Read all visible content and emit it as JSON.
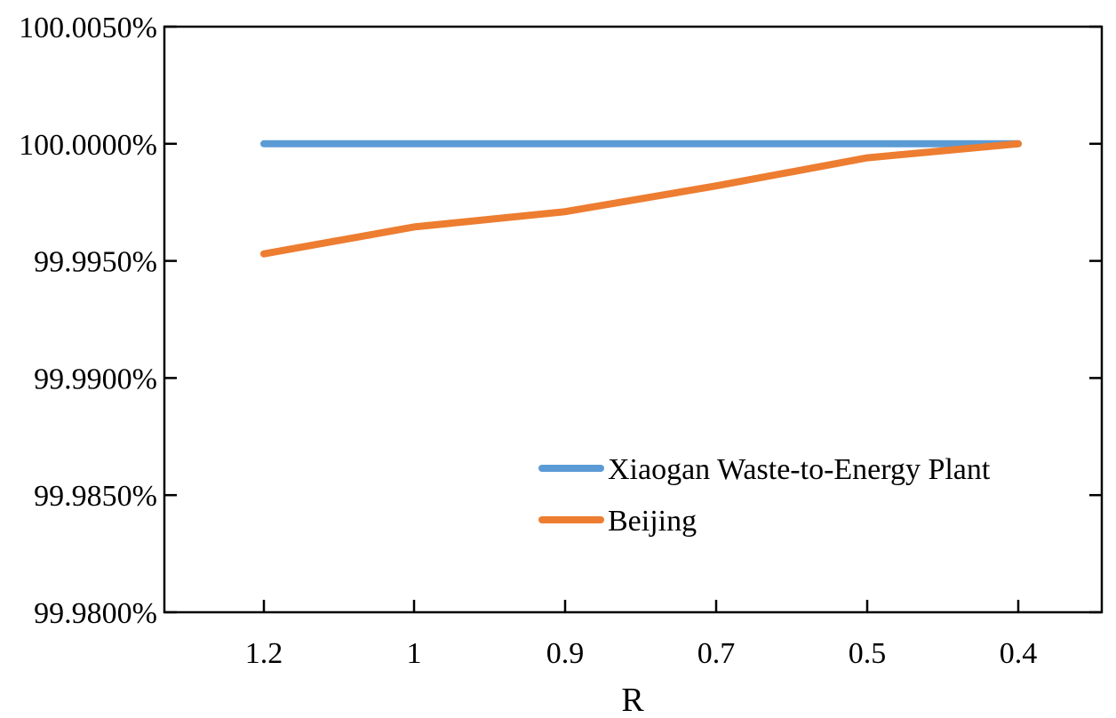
{
  "chart_data": {
    "type": "line",
    "title": "",
    "xlabel": "R",
    "ylabel": "",
    "categories": [
      "1.2",
      "1",
      "0.9",
      "0.7",
      "0.5",
      "0.4"
    ],
    "y_tick_labels": [
      "100.0050%",
      "100.0000%",
      "99.9950%",
      "99.9900%",
      "99.9850%",
      "99.9800%"
    ],
    "y_ticks": [
      100.005,
      100.0,
      99.995,
      99.99,
      99.985,
      99.98
    ],
    "ylim": [
      99.98,
      100.005
    ],
    "grid": false,
    "legend_position": "lower-right",
    "series": [
      {
        "name": "Xiaogan Waste-to-Energy Plant",
        "color": "#5B9BD5",
        "values": [
          100.0,
          100.0,
          100.0,
          100.0,
          100.0,
          100.0
        ]
      },
      {
        "name": "Beijing",
        "color": "#ED7D31",
        "values": [
          99.9953,
          99.99645,
          99.9971,
          99.9982,
          99.9994,
          100.0
        ]
      }
    ]
  }
}
